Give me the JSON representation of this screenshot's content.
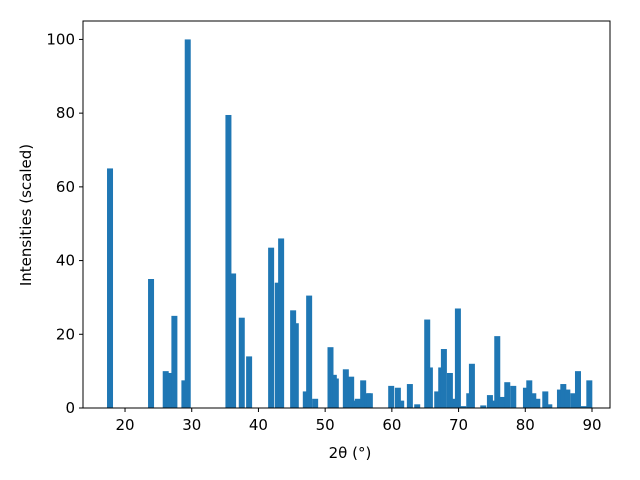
{
  "chart_data": {
    "type": "bar",
    "xlabel": "2θ (°)",
    "ylabel": "Intensities (scaled)",
    "color": "#1f77b4",
    "grid": false,
    "x": [
      17.75,
      23.9,
      26.1,
      26.7,
      27.4,
      28.9,
      29.4,
      35.5,
      36.2,
      37.5,
      38.6,
      41.9,
      42.9,
      43.4,
      45.2,
      45.6,
      47.1,
      47.6,
      48.5,
      50.8,
      51.3,
      51.6,
      53.1,
      53.9,
      54.5,
      54.9,
      55.7,
      56.4,
      56.7,
      59.9,
      60.9,
      61.4,
      62.7,
      63.8,
      65.3,
      65.7,
      66.8,
      67.4,
      67.8,
      68.7,
      69.3,
      69.9,
      70.7,
      71.6,
      72.0,
      73.7,
      74.7,
      75.3,
      75.8,
      76.5,
      77.3,
      78.2,
      80.1,
      80.6,
      81.2,
      81.8,
      83.0,
      83.6,
      85.2,
      85.7,
      86.3,
      87.2,
      87.9,
      88.8,
      89.6
    ],
    "values": [
      65,
      35,
      10,
      9.5,
      25,
      7.5,
      100,
      79.5,
      36.5,
      24.5,
      14,
      43.5,
      34,
      46,
      26.5,
      23,
      4.5,
      30.5,
      2.5,
      16.5,
      9,
      8,
      10.5,
      8.5,
      2,
      2.5,
      7.5,
      4,
      4,
      6,
      5.5,
      2,
      6.5,
      1,
      24,
      11,
      4.5,
      11,
      16,
      9.5,
      2.5,
      27,
      0.5,
      4,
      12,
      0.7,
      3.5,
      2,
      19.5,
      3,
      7,
      6,
      5.5,
      7.5,
      4,
      2.5,
      4.5,
      1,
      5,
      6.5,
      5,
      4,
      10,
      0.5,
      7.5
    ],
    "xlim": [
      13.7,
      92.7
    ],
    "ylim": [
      0,
      105
    ],
    "xticks": [
      20,
      30,
      40,
      50,
      60,
      70,
      80,
      90
    ],
    "yticks": [
      0,
      20,
      40,
      60,
      80,
      100
    ]
  }
}
